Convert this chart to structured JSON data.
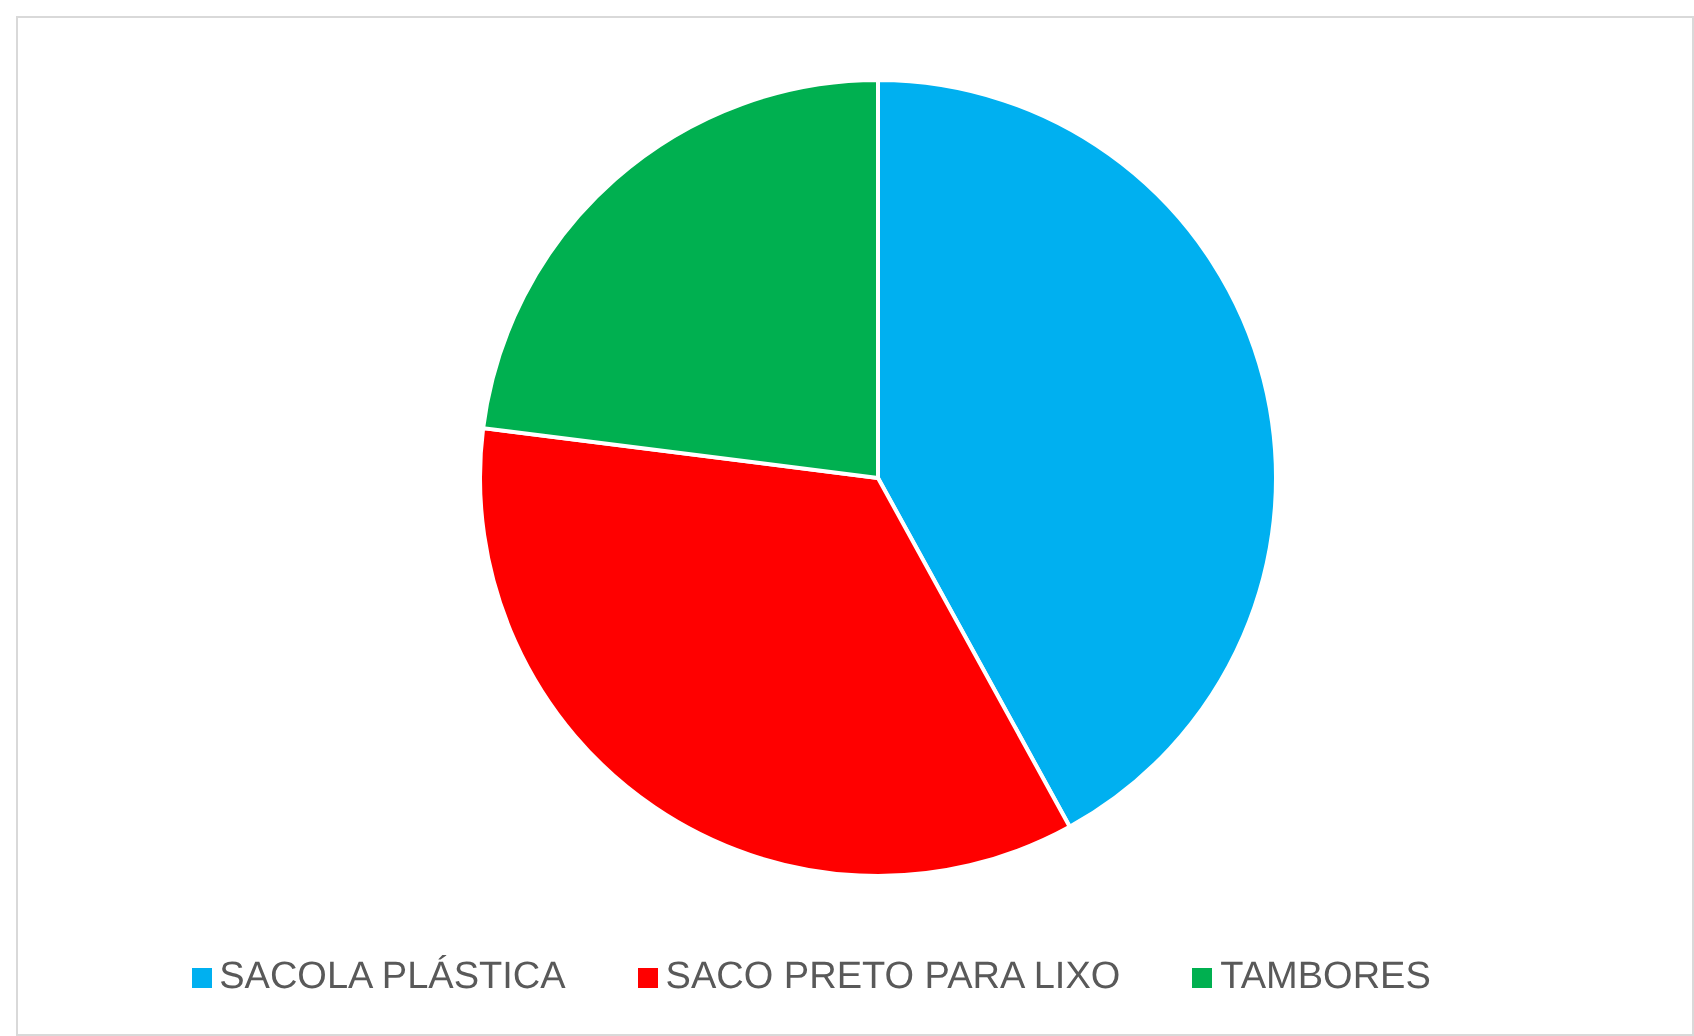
{
  "chart_data": {
    "type": "pie",
    "categories": [
      "SACOLA PLÁSTICA",
      "SACO PRETO PARA LIXO",
      "TAMBORES"
    ],
    "values": [
      42,
      35,
      23
    ],
    "colors": [
      "#00b0f0",
      "#ff0000",
      "#00b050"
    ],
    "legend": "bottom"
  }
}
